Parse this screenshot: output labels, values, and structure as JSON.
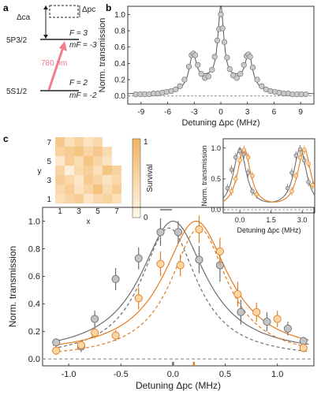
{
  "panels": {
    "a": "a",
    "b": "b",
    "c": "c"
  },
  "level_diagram": {
    "delta_ca": "Δca",
    "delta_pc": "Δpc",
    "upper_state": "5P3/2",
    "upper_F": "F = 3",
    "upper_mF": "mF = -3",
    "lower_state": "5S1/2",
    "lower_F": "F = 2",
    "lower_mF": "mF = -2",
    "laser_label": "780 nm",
    "colors": {
      "laser": "#ee7f8c",
      "level": "#222222"
    }
  },
  "chart_data": [
    {
      "id": "b",
      "type": "scatter",
      "xlabel": "Detuning Δpc (MHz)",
      "ylabel": "Norm. transmission",
      "xlim": [
        -10.5,
        10.5
      ],
      "ylim": [
        -0.1,
        1.1
      ],
      "xticks": [
        -9,
        -6,
        -3,
        0,
        3,
        6,
        9
      ],
      "yticks": [
        0.0,
        0.2,
        0.4,
        0.6,
        0.8,
        1.0
      ],
      "colors": {
        "point": "#c9c9c9",
        "line": "#555555"
      },
      "points": {
        "x": [
          -9.6,
          -9.1,
          -8.6,
          -8.1,
          -7.6,
          -7.1,
          -6.6,
          -6.1,
          -5.6,
          -5.1,
          -4.6,
          -4.1,
          -3.6,
          -3.3,
          -3.1,
          -2.9,
          -2.6,
          -2.2,
          -1.8,
          -1.4,
          -1.0,
          -0.7,
          -0.4,
          -0.2,
          0.0,
          0.2,
          0.4,
          0.7,
          1.0,
          1.4,
          1.8,
          2.2,
          2.6,
          2.9,
          3.1,
          3.3,
          3.6,
          4.1,
          4.6,
          5.1,
          5.6,
          6.1,
          6.6,
          7.1,
          7.6,
          8.1,
          8.6,
          9.1,
          9.6
        ],
        "y": [
          0.02,
          0.02,
          0.02,
          0.02,
          0.03,
          0.03,
          0.04,
          0.05,
          0.06,
          0.08,
          0.12,
          0.2,
          0.36,
          0.5,
          0.52,
          0.5,
          0.38,
          0.27,
          0.22,
          0.24,
          0.32,
          0.48,
          0.68,
          0.82,
          1.0,
          0.83,
          0.66,
          0.47,
          0.33,
          0.25,
          0.22,
          0.27,
          0.38,
          0.49,
          0.51,
          0.48,
          0.35,
          0.2,
          0.12,
          0.08,
          0.06,
          0.05,
          0.04,
          0.03,
          0.03,
          0.02,
          0.02,
          0.02,
          0.02
        ]
      },
      "fit": {
        "baseline": 0.02,
        "peaks": [
          {
            "x0": 0,
            "a": 0.96,
            "w": 0.42
          },
          {
            "x0": -3.15,
            "a": 0.42,
            "w": 0.5
          },
          {
            "x0": 3.15,
            "a": 0.42,
            "w": 0.5
          },
          {
            "x0": -1.7,
            "a": 0.13,
            "w": 1.4
          },
          {
            "x0": 1.7,
            "a": 0.13,
            "w": 1.4
          }
        ]
      }
    },
    {
      "id": "c-heatmap",
      "type": "heatmap",
      "xlabel": "x",
      "ylabel": "y",
      "xticks": [
        1,
        3,
        5,
        7
      ],
      "yticks": [
        1,
        3,
        5,
        7
      ],
      "colorbar_label": "Survival",
      "colorbar_ticks": [
        "1",
        "0"
      ],
      "colors": {
        "low": "#fff6e8",
        "high": "#f2b463"
      },
      "rows_top_to_bottom": [
        [
          0.7,
          0.35,
          0.55,
          0.3,
          0.45,
          null,
          null
        ],
        [
          0.55,
          0.65,
          0.75,
          0.5,
          0.7,
          0.4,
          null
        ],
        [
          0.2,
          0.6,
          0.4,
          0.75,
          0.5,
          0.3,
          null
        ],
        [
          0.5,
          0.1,
          0.45,
          0.6,
          0.35,
          0.75,
          0.55
        ],
        [
          0.6,
          0.45,
          0.25,
          0.65,
          0.5,
          0.3,
          0.45
        ],
        [
          0.45,
          0.6,
          0.3,
          0.5,
          0.8,
          0.4,
          0.6
        ],
        [
          0.35,
          0.5,
          0.6,
          0.25,
          0.45,
          0.55,
          0.35
        ]
      ]
    },
    {
      "id": "c-main",
      "type": "scatter",
      "xlabel": "Detuning Δpc (MHz)",
      "ylabel": "Norm. transmission",
      "xlim": [
        -1.25,
        1.35
      ],
      "ylim": [
        -0.05,
        1.1
      ],
      "xticks": [
        -1.0,
        -0.5,
        0.0,
        0.5,
        1.0
      ],
      "yticks": [
        0.0,
        0.2,
        0.4,
        0.6,
        0.8,
        1.0
      ],
      "markers": [
        0.0,
        0.2
      ],
      "series": [
        {
          "color": "#6e6e6e",
          "fill": "#c4c4c4",
          "x": [
            -1.12,
            -0.88,
            -0.75,
            -0.55,
            -0.33,
            -0.12,
            0.05,
            0.25,
            0.45,
            0.65,
            0.9,
            1.1,
            1.25
          ],
          "y": [
            0.12,
            0.09,
            0.29,
            0.58,
            0.73,
            0.92,
            0.92,
            0.72,
            0.68,
            0.34,
            0.27,
            0.22,
            0.13
          ],
          "err": [
            0.03,
            0.04,
            0.06,
            0.08,
            0.08,
            0.1,
            0.08,
            0.1,
            0.12,
            0.09,
            0.07,
            0.05,
            0.03
          ],
          "fit": {
            "x0": 0.0,
            "a": 0.97,
            "w": 0.38,
            "c": 0.03
          },
          "fit_dashed": {
            "x0": -0.04,
            "a": 0.95,
            "w": 0.33,
            "c": 0.0
          }
        },
        {
          "color": "#e27b1e",
          "fill": "#fbd7a6",
          "x": [
            -1.12,
            -0.88,
            -0.75,
            -0.55,
            -0.33,
            -0.12,
            0.07,
            0.25,
            0.45,
            0.62,
            0.8,
            1.0,
            1.25
          ],
          "y": [
            0.06,
            0.1,
            0.19,
            0.17,
            0.44,
            0.69,
            0.68,
            0.94,
            0.78,
            0.47,
            0.34,
            0.29,
            0.08
          ],
          "err": [
            0.03,
            0.03,
            0.04,
            0.04,
            0.08,
            0.09,
            0.08,
            0.1,
            0.1,
            0.09,
            0.07,
            0.06,
            0.03
          ],
          "fit": {
            "x0": 0.22,
            "a": 0.97,
            "w": 0.38,
            "c": 0.03
          },
          "fit_dashed": {
            "x0": 0.25,
            "a": 0.95,
            "w": 0.33,
            "c": 0.0
          }
        }
      ]
    },
    {
      "id": "c-inset",
      "type": "scatter",
      "xlabel": "Detuning Δpc (MHz)",
      "ylabel": "Norm. transmission",
      "xlim": [
        -0.8,
        3.6
      ],
      "ylim": [
        -0.05,
        1.15
      ],
      "xticks": [
        0.0,
        1.5,
        3.0
      ],
      "yticks": [
        0.0,
        0.5,
        1.0
      ],
      "series": [
        {
          "color": "#6e6e6e",
          "fill": "#c4c4c4",
          "x": [
            -0.6,
            -0.4,
            -0.2,
            0.0,
            0.2,
            0.4,
            0.6,
            2.3,
            2.5,
            2.7,
            2.9,
            3.1,
            3.3
          ],
          "y": [
            0.35,
            0.65,
            0.85,
            0.95,
            0.9,
            0.6,
            0.3,
            0.35,
            0.6,
            0.88,
            0.98,
            0.8,
            0.45
          ],
          "centers": [
            0.0,
            2.9
          ]
        },
        {
          "color": "#e27b1e",
          "fill": "#fbd7a6",
          "x": [
            -0.4,
            -0.2,
            0.0,
            0.2,
            0.4,
            0.6,
            0.8,
            2.5,
            2.7,
            2.9,
            3.1,
            3.3,
            3.5
          ],
          "y": [
            0.3,
            0.5,
            0.8,
            0.97,
            0.85,
            0.55,
            0.25,
            0.3,
            0.55,
            0.85,
            0.97,
            0.75,
            0.4
          ],
          "centers": [
            0.2,
            3.1
          ]
        }
      ]
    }
  ]
}
